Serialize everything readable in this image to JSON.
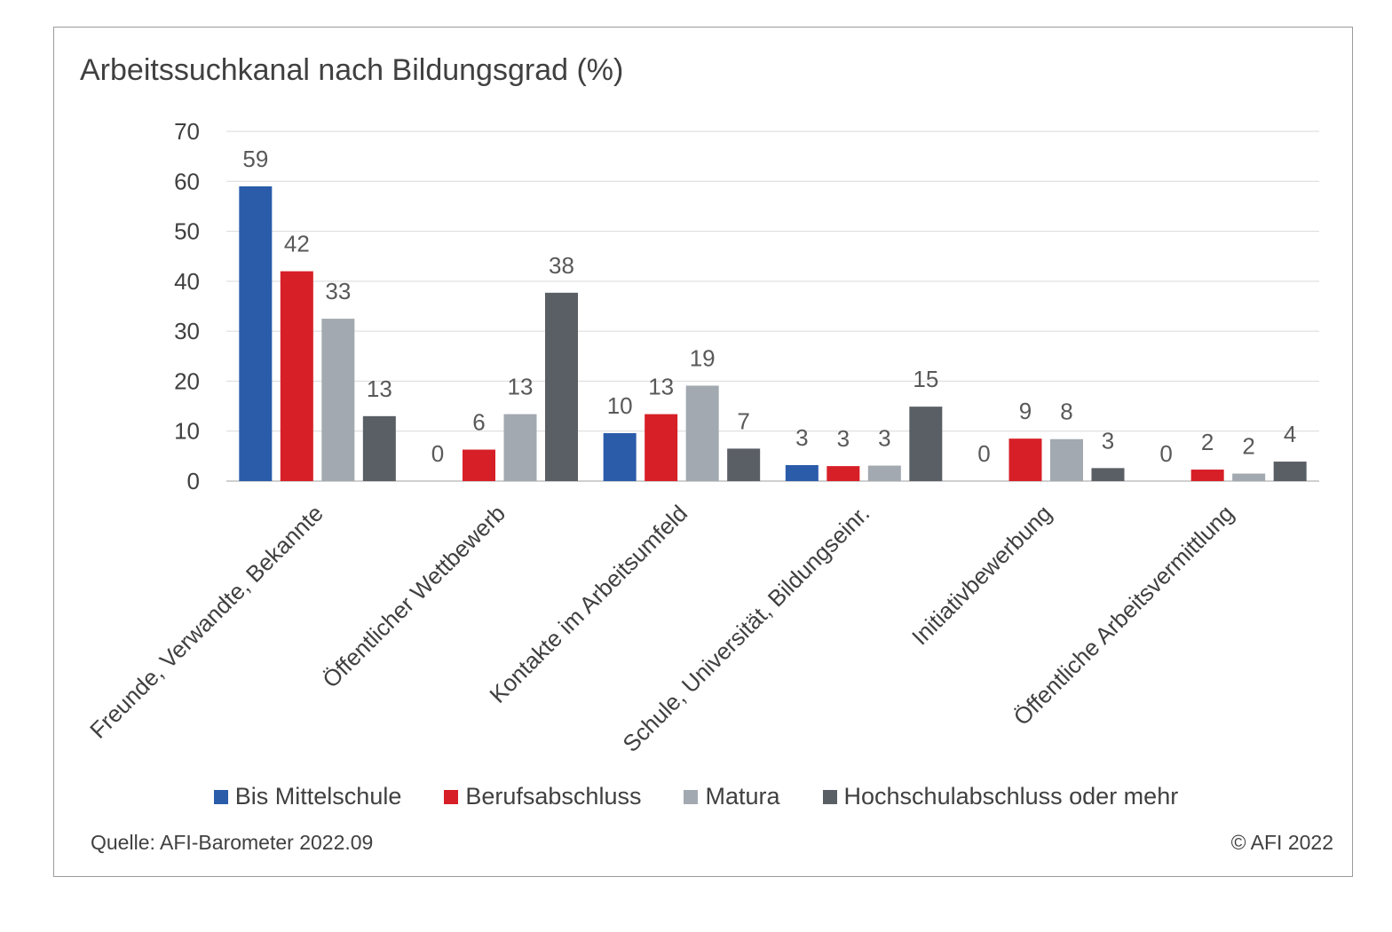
{
  "title": "Arbeitssuchkanal nach Bildungsgrad (%)",
  "source": "Quelle: AFI-Barometer 2022.09",
  "copyright": "© AFI 2022",
  "chart_data": {
    "type": "bar",
    "title": "Arbeitssuchkanal nach Bildungsgrad (%)",
    "categories": [
      "Freunde, Verwandte, Bekannte",
      "Öffentlicher Wettbewerb",
      "Kontakte im Arbeitsumfeld",
      "Schule, Universität, Bildungseinr.",
      "Initiativbewerbung",
      "Öffentliche Arbeitsvermittlung"
    ],
    "series": [
      {
        "name": "Bis Mittelschule",
        "color": "#2a5caa",
        "values": [
          59,
          0,
          9.6,
          3.2,
          0,
          0
        ],
        "labels": [
          "59",
          "0",
          "10",
          "3",
          "0",
          "0"
        ]
      },
      {
        "name": "Berufsabschluss",
        "color": "#d71f27",
        "values": [
          42,
          6.3,
          13.4,
          3.0,
          8.5,
          2.3
        ],
        "labels": [
          "42",
          "6",
          "13",
          "3",
          "9",
          "2"
        ]
      },
      {
        "name": "Matura",
        "color": "#a2a9b0",
        "values": [
          32.5,
          13.4,
          19.1,
          3.1,
          8.4,
          1.5
        ],
        "labels": [
          "33",
          "13",
          "19",
          "3",
          "8",
          "2"
        ]
      },
      {
        "name": "Hochschulabschluss oder mehr",
        "color": "#595f64",
        "values": [
          13,
          37.7,
          6.5,
          14.9,
          2.6,
          3.9
        ],
        "labels": [
          "13",
          "38",
          "7",
          "15",
          "3",
          "4"
        ]
      }
    ],
    "ylim": [
      0,
      70
    ],
    "yticks": [
      "0",
      "10",
      "20",
      "30",
      "40",
      "50",
      "60",
      "70"
    ],
    "grid": true,
    "legend_position": "bottom"
  }
}
